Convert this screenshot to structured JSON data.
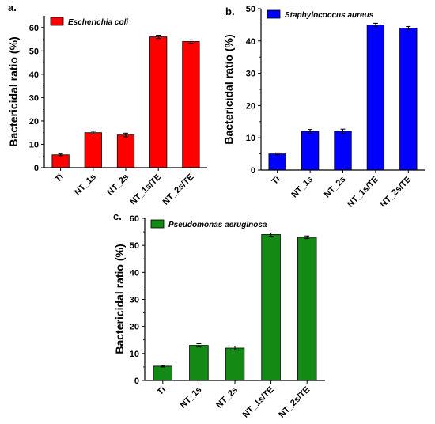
{
  "chart_data": [
    {
      "panel": "a.",
      "type": "bar",
      "categories": [
        "Ti",
        "NT_1s",
        "NT_2s",
        "NT_1s/TE",
        "NT_2s/TE"
      ],
      "series": [
        {
          "name": "Escherichia coli",
          "values": [
            5.5,
            15,
            14,
            56,
            54
          ],
          "errors": [
            0.4,
            0.6,
            0.8,
            0.7,
            0.7
          ]
        }
      ],
      "ylabel": "Bactericidal ratio (%)",
      "ylim": [
        0,
        65
      ],
      "yticks": [
        0,
        10,
        20,
        30,
        40,
        50,
        60
      ],
      "color": "#ff0000",
      "legend": "top-left"
    },
    {
      "panel": "b.",
      "type": "bar",
      "categories": [
        "Ti",
        "NT_1s",
        "NT_2s",
        "NT_1s/TE",
        "NT_2s/TE"
      ],
      "series": [
        {
          "name": "Staphylococcus aureus",
          "values": [
            5,
            12,
            12,
            45,
            44
          ],
          "errors": [
            0.3,
            0.6,
            0.7,
            0.5,
            0.5
          ]
        }
      ],
      "ylabel": "Bactericidal ratio (%)",
      "ylim": [
        0,
        50
      ],
      "yticks": [
        0,
        10,
        20,
        30,
        40,
        50
      ],
      "color": "#0000ff",
      "legend": "top-left"
    },
    {
      "panel": "c.",
      "type": "bar",
      "categories": [
        "Ti",
        "NT_1s",
        "NT_2s",
        "NT_1s/TE",
        "NT_2s/TE"
      ],
      "series": [
        {
          "name": "Pseudomonas aeruginosa",
          "values": [
            5.3,
            13,
            12,
            54,
            53
          ],
          "errors": [
            0.3,
            0.6,
            0.7,
            0.6,
            0.5
          ]
        }
      ],
      "ylabel": "Bactericidal ratio (%)",
      "ylim": [
        0,
        60
      ],
      "yticks": [
        0,
        10,
        20,
        30,
        40,
        50,
        60
      ],
      "color": "#138a13",
      "legend": "top-left"
    }
  ]
}
